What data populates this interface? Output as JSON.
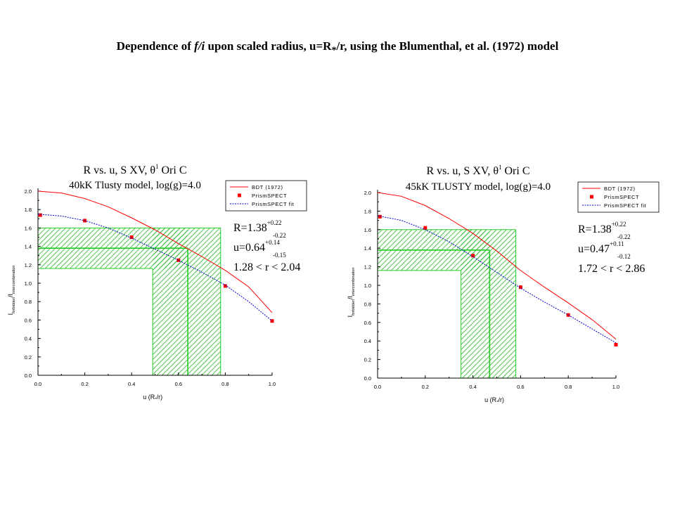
{
  "slide": {
    "title": {
      "pre": "Dependence of ",
      "fi": "f/i",
      "mid": " upon scaled radius, u=R",
      "star": "*",
      "post": "/r, using the Blumenthal, et al. (1972) model"
    }
  },
  "chart_data": [
    {
      "type": "line",
      "title_line1": {
        "text": "R vs. u, S XV, ",
        "theta": "θ",
        "sup": "1",
        "tail": " Ori C"
      },
      "title_line2": "40kK Tlusty model, log(g)=4.0",
      "xlabel": {
        "pre": "u (R",
        "sub": "*",
        "post": "/r)"
      },
      "ylabel": {
        "a": "I",
        "a_sub": "forbidden",
        "b": "/I",
        "b_sub": "intercombination"
      },
      "xlim": [
        0.0,
        1.0
      ],
      "ylim": [
        0.0,
        2.0
      ],
      "xticks": [
        "0.0",
        "0.2",
        "0.4",
        "0.6",
        "0.8",
        "1.0"
      ],
      "yticks": [
        "0.0",
        "0.2",
        "0.4",
        "0.6",
        "0.8",
        "1.0",
        "1.2",
        "1.4",
        "1.6",
        "1.8",
        "2.0"
      ],
      "legend": {
        "position": "top-right",
        "entries": [
          "BDT (1972)",
          "PrismSPECT",
          "PrismSPECT fit"
        ]
      },
      "series": [
        {
          "name": "BDT (1972)",
          "style": "line",
          "color": "#ff0000",
          "x": [
            0.0,
            0.1,
            0.2,
            0.3,
            0.4,
            0.5,
            0.6,
            0.7,
            0.8,
            0.9,
            1.0
          ],
          "y": [
            2.0,
            1.98,
            1.92,
            1.83,
            1.71,
            1.58,
            1.43,
            1.29,
            1.14,
            0.96,
            0.68
          ]
        },
        {
          "name": "PrismSPECT",
          "style": "markers",
          "color": "#ff0000",
          "x": [
            0.01,
            0.2,
            0.4,
            0.6,
            0.8,
            1.0
          ],
          "y": [
            1.74,
            1.68,
            1.5,
            1.25,
            0.97,
            0.59
          ]
        },
        {
          "name": "PrismSPECT fit",
          "style": "dotted",
          "color": "#0000cc",
          "x": [
            0.0,
            0.1,
            0.2,
            0.3,
            0.4,
            0.5,
            0.6,
            0.7,
            0.8,
            0.9,
            1.0
          ],
          "y": [
            1.75,
            1.73,
            1.68,
            1.6,
            1.49,
            1.37,
            1.25,
            1.12,
            0.98,
            0.8,
            0.59
          ]
        }
      ],
      "annotation": {
        "R_line": {
          "main": "R=1.38",
          "sup": "+0.22",
          "sub": "-0.22"
        },
        "u_line": {
          "main": "u=0.64",
          "sup": "+0.14",
          "sub": "-0.15"
        },
        "r_range": "1.28 < r < 2.04"
      },
      "regions": {
        "R": 1.38,
        "R_low": 1.16,
        "R_high": 1.6,
        "u": 0.64,
        "u_low": 0.49,
        "u_high": 0.78
      },
      "colors": {
        "hatch": "#22bb22",
        "guide": "#22cc22"
      }
    },
    {
      "type": "line",
      "title_line1": {
        "text": "R vs. u, S XV, ",
        "theta": "θ",
        "sup": "1",
        "tail": " Ori C"
      },
      "title_line2": "45kK TLUSTY model, log(g)=4.0",
      "xlabel": {
        "pre": "u (R",
        "sub": "*",
        "post": "/r)"
      },
      "ylabel": {
        "a": "I",
        "a_sub": "forbidden",
        "b": "/I",
        "b_sub": "intercombination"
      },
      "xlim": [
        0.0,
        1.0
      ],
      "ylim": [
        0.0,
        2.0
      ],
      "xticks": [
        "0.0",
        "0.2",
        "0.4",
        "0.6",
        "0.8",
        "1.0"
      ],
      "yticks": [
        "0.0",
        "0.2",
        "0.4",
        "0.6",
        "0.8",
        "1.0",
        "1.2",
        "1.4",
        "1.6",
        "1.8",
        "2.0"
      ],
      "legend": {
        "position": "top-right",
        "entries": [
          "BDT (1972)",
          "PrismSPECT",
          "PrismSPECT fit"
        ]
      },
      "series": [
        {
          "name": "BDT (1972)",
          "style": "line",
          "color": "#ff0000",
          "x": [
            0.0,
            0.1,
            0.2,
            0.3,
            0.4,
            0.5,
            0.6,
            0.7,
            0.8,
            0.9,
            1.0
          ],
          "y": [
            2.0,
            1.96,
            1.86,
            1.72,
            1.56,
            1.37,
            1.16,
            0.98,
            0.81,
            0.63,
            0.42
          ]
        },
        {
          "name": "PrismSPECT",
          "style": "markers",
          "color": "#ff0000",
          "x": [
            0.01,
            0.2,
            0.4,
            0.6,
            0.8,
            1.0
          ],
          "y": [
            1.74,
            1.62,
            1.32,
            0.98,
            0.68,
            0.36
          ]
        },
        {
          "name": "PrismSPECT fit",
          "style": "dotted",
          "color": "#0000cc",
          "x": [
            0.0,
            0.1,
            0.2,
            0.3,
            0.4,
            0.5,
            0.6,
            0.7,
            0.8,
            0.9,
            1.0
          ],
          "y": [
            1.75,
            1.7,
            1.6,
            1.47,
            1.31,
            1.14,
            0.97,
            0.82,
            0.68,
            0.53,
            0.38
          ]
        }
      ],
      "annotation": {
        "R_line": {
          "main": "R=1.38",
          "sup": "+0.22",
          "sub": "-0.22"
        },
        "u_line": {
          "main": "u=0.47",
          "sup": "+0.11",
          "sub": "-0.12"
        },
        "r_range": "1.72 < r < 2.86"
      },
      "regions": {
        "R": 1.38,
        "R_low": 1.16,
        "R_high": 1.6,
        "u": 0.47,
        "u_low": 0.35,
        "u_high": 0.58
      },
      "colors": {
        "hatch": "#22bb22",
        "guide": "#22cc22"
      }
    }
  ]
}
